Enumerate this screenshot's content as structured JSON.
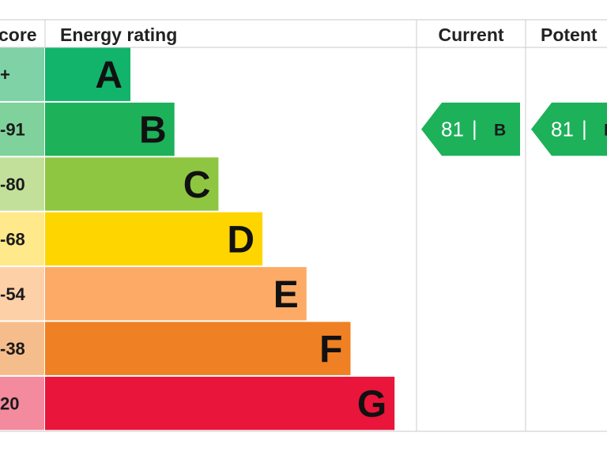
{
  "headers": {
    "score": "core",
    "rating": "Energy rating",
    "current": "Current",
    "potential": "Potent"
  },
  "chart_data": {
    "type": "bar",
    "bands": [
      {
        "range": "+",
        "letter": "A",
        "color": "#12b36b",
        "score_color": "#7fd1a6"
      },
      {
        "range": "-91",
        "letter": "B",
        "color": "#1db15a",
        "score_color": "#7fd29b"
      },
      {
        "range": "-80",
        "letter": "C",
        "color": "#8ec641",
        "score_color": "#c2e09a"
      },
      {
        "range": "-68",
        "letter": "D",
        "color": "#ffd500",
        "score_color": "#ffe98a"
      },
      {
        "range": "-54",
        "letter": "E",
        "color": "#fcaa65",
        "score_color": "#fdd0a8"
      },
      {
        "range": "-38",
        "letter": "F",
        "color": "#ef8023",
        "score_color": "#f6bd8c"
      },
      {
        "range": "20",
        "letter": "G",
        "color": "#e9153b",
        "score_color": "#f38a9d"
      }
    ],
    "current": {
      "value": "81",
      "separator": "|",
      "letter": "B",
      "color": "#1db15a"
    },
    "potential": {
      "value": "81",
      "separator": "|",
      "letter": "B",
      "color": "#1db15a"
    }
  }
}
